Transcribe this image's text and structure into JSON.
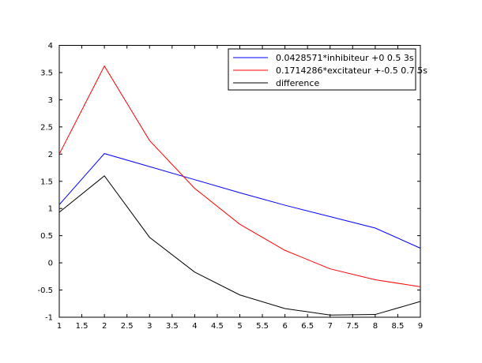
{
  "chart_data": {
    "type": "line",
    "title": "",
    "xlabel": "",
    "ylabel": "",
    "xlim": [
      1,
      9
    ],
    "ylim": [
      -1,
      4
    ],
    "x_ticks": [
      "1",
      "1.5",
      "2",
      "2.5",
      "3",
      "3.5",
      "4",
      "4.5",
      "5",
      "5.5",
      "6",
      "6.5",
      "7",
      "7.5",
      "8",
      "8.5",
      "9"
    ],
    "y_ticks": [
      "-1",
      "-0.5",
      "0",
      "0.5",
      "1",
      "1.5",
      "2",
      "2.5",
      "3",
      "3.5",
      "4"
    ],
    "grid": false,
    "legend_position": "top-right",
    "x": [
      1,
      2,
      3,
      4,
      5,
      6,
      7,
      8,
      9
    ],
    "series": [
      {
        "name": "0.0428571*inhibiteur +0 0.5 3s",
        "color": "#0000ff",
        "values": [
          1.07,
          2.01,
          1.77,
          1.53,
          1.29,
          1.06,
          0.85,
          0.64,
          0.27
        ]
      },
      {
        "name": "0.1714286*excitateur +-0.5 0.7 5s",
        "color": "#ff0000",
        "values": [
          2.0,
          3.62,
          2.25,
          1.37,
          0.71,
          0.23,
          -0.11,
          -0.31,
          -0.44
        ]
      },
      {
        "name": "difference",
        "color": "#000000",
        "values": [
          0.93,
          1.6,
          0.47,
          -0.17,
          -0.59,
          -0.84,
          -0.96,
          -0.95,
          -0.71
        ]
      }
    ]
  }
}
